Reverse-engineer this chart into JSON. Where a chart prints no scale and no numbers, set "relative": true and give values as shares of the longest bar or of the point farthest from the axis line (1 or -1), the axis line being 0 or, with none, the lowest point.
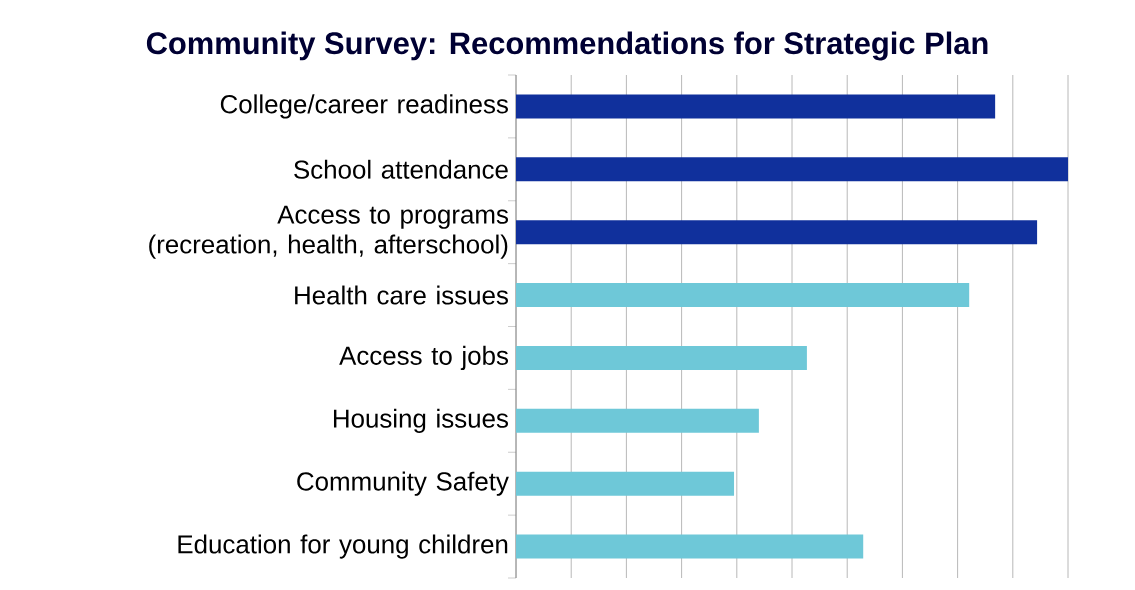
{
  "chart_data": {
    "type": "bar",
    "orientation": "horizontal",
    "relative": true,
    "title": "Community Survey: Recommendations for Strategic Plan",
    "categories": [
      "College/career readiness",
      "School attendance",
      "Access to programs (recreation, health, afterschool)",
      "Health care issues",
      "Access to jobs",
      "Housing issues",
      "Community Safety",
      "Education for young children"
    ],
    "values": [
      0.868,
      1,
      0.944,
      0.821,
      0.527,
      0.44,
      0.395,
      0.629
    ],
    "colors": [
      "#10309c",
      "#10309c",
      "#10309c",
      "#6ec8d8",
      "#6ec8d8",
      "#6ec8d8",
      "#6ec8d8",
      "#6ec8d8"
    ],
    "grid": "x"
  }
}
